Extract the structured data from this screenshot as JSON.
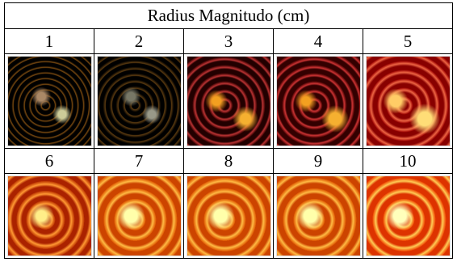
{
  "table": {
    "title": "Radius Magnitudo (cm)",
    "rows": [
      [
        "1",
        "2",
        "3",
        "4",
        "5"
      ],
      [
        "6",
        "7",
        "8",
        "9",
        "10"
      ]
    ]
  }
}
